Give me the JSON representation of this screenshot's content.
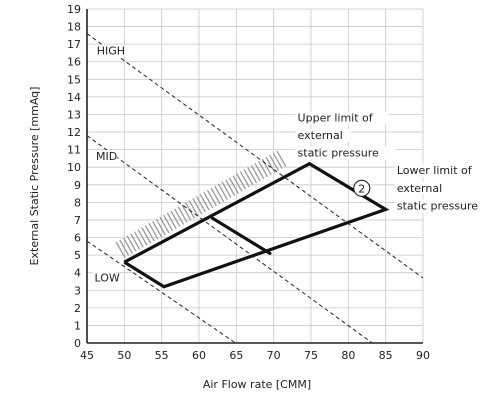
{
  "chart_data": {
    "type": "line",
    "xlabel": "Air Flow rate [CMM]",
    "ylabel": "External Static Pressure [mmAq]",
    "xlim": [
      45,
      90
    ],
    "ylim": [
      0,
      19
    ],
    "xticks": [
      45,
      50,
      55,
      60,
      65,
      70,
      75,
      80,
      85,
      90
    ],
    "yticks": [
      0,
      1,
      2,
      3,
      4,
      5,
      6,
      7,
      8,
      9,
      10,
      11,
      12,
      13,
      14,
      15,
      16,
      17,
      18,
      19
    ],
    "grid": true,
    "fan_curves": [
      {
        "name": "HIGH",
        "x": [
          45,
          90
        ],
        "y": [
          17.6,
          3.7
        ]
      },
      {
        "name": "MID",
        "x": [
          45,
          90
        ],
        "y": [
          11.8,
          -2.1
        ]
      },
      {
        "name": "LOW",
        "x": [
          45,
          69
        ],
        "y": [
          5.8,
          -1.2
        ]
      }
    ],
    "operating_range": {
      "x": [
        50,
        74.8,
        85,
        55.3,
        50
      ],
      "y": [
        4.6,
        10.2,
        7.6,
        3.2,
        4.6
      ]
    },
    "mid_limit_segment": {
      "x": [
        61.8,
        69.5
      ],
      "y": [
        7.1,
        5.1
      ]
    },
    "hatched_band": {
      "x": [
        49.5,
        71.5
      ],
      "y": [
        5.3,
        10.6
      ]
    },
    "annotations": [
      {
        "text": "HIGH",
        "x": 46.3,
        "y": 16.4
      },
      {
        "text": "MID",
        "x": 46.2,
        "y": 10.4
      },
      {
        "text": "LOW",
        "x": 46.0,
        "y": 3.5
      },
      {
        "text": "Upper limit of",
        "x": 73.2,
        "y": 12.6
      },
      {
        "text": "external",
        "x": 73.2,
        "y": 11.6
      },
      {
        "text": "static pressure",
        "x": 73.2,
        "y": 10.6
      },
      {
        "text": "Lower limit of",
        "x": 86.5,
        "y": 9.6
      },
      {
        "text": "external",
        "x": 86.5,
        "y": 8.6
      },
      {
        "text": "static pressure",
        "x": 86.5,
        "y": 7.6
      }
    ],
    "marker": {
      "text": "2",
      "x": 81.8,
      "y": 8.8
    }
  }
}
